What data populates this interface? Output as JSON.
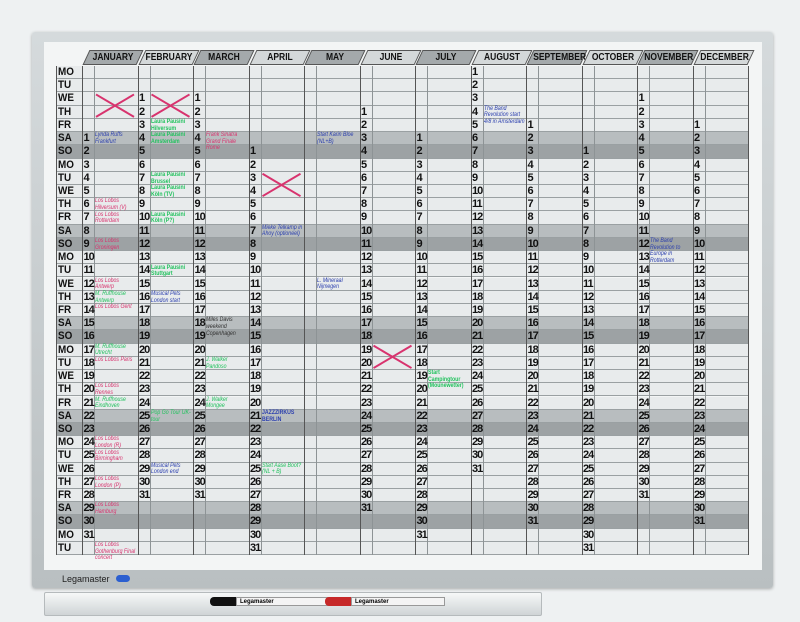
{
  "brand": "Legamaster",
  "marker_label": "Legamaster",
  "weekdays": [
    "MO",
    "TU",
    "WE",
    "TH",
    "FR",
    "SA",
    "SO",
    "MO",
    "TU",
    "WE",
    "TH",
    "FR",
    "SA",
    "SO",
    "MO",
    "TU",
    "WE",
    "TH",
    "FR",
    "SA",
    "SO",
    "MO",
    "TU",
    "WE",
    "TH",
    "FR",
    "SA",
    "SO",
    "MO",
    "TU",
    "WE",
    "TH",
    "FR",
    "SA",
    "SO",
    "MO",
    "TU"
  ],
  "months": [
    {
      "name": "JANUARY",
      "first_weekday": "SA",
      "days": 31
    },
    {
      "name": "FEBRUARY",
      "first_weekday": "WE",
      "days": 31
    },
    {
      "name": "MARCH",
      "first_weekday": "WE",
      "days": 31
    },
    {
      "name": "APRIL",
      "first_weekday": "SO",
      "days": 31
    },
    {
      "name": "MAY",
      "first_weekday": "",
      "days": 0
    },
    {
      "name": "JUNE",
      "first_weekday": "TH",
      "days": 31
    },
    {
      "name": "JULY",
      "first_weekday": "SA",
      "days": 31
    },
    {
      "name": "AUGUST",
      "first_weekday": "MO",
      "days": 31
    },
    {
      "name": "SEPTEMBER",
      "first_weekday": "FR",
      "days": 31
    },
    {
      "name": "OCTOBER",
      "first_weekday": "SO",
      "days": 31
    },
    {
      "name": "NOVEMBER",
      "first_weekday": "WE",
      "days": 31
    },
    {
      "name": "DECEMBER",
      "first_weekday": "FR",
      "days": 31
    }
  ],
  "colors": {
    "pink": "#d8336e",
    "green": "#22c25e",
    "blue": "#2b3fae",
    "dark": "#333333",
    "saturday_band": "#b8bdbf",
    "sunday_band": "#9da2a4"
  },
  "notes": [
    {
      "text": "Lynda Ruffs Frankfurt",
      "color": "blue"
    },
    {
      "text": "Los Lobos Hilversum (V)",
      "color": "pink"
    },
    {
      "text": "Los Lobos Rotterdam",
      "color": "pink"
    },
    {
      "text": "Los Lobos Groningen",
      "color": "pink"
    },
    {
      "text": "Los Lobos Antwerp",
      "color": "pink"
    },
    {
      "text": "M. Ruffhouse Antwerp",
      "color": "green"
    },
    {
      "text": "Los Lobos Gent",
      "color": "pink"
    },
    {
      "text": "M. Ruffhouse Utrecht",
      "color": "green"
    },
    {
      "text": "Los Lobos Paris",
      "color": "pink"
    },
    {
      "text": "Los Lobos Rennes",
      "color": "pink"
    },
    {
      "text": "M. Ruffhouse Eindhoven",
      "color": "green"
    },
    {
      "text": "Los Lobos London (R)",
      "color": "pink"
    },
    {
      "text": "Los Lobos Birmingham",
      "color": "pink"
    },
    {
      "text": "Los Lobos London (P)",
      "color": "pink"
    },
    {
      "text": "Los Lobos Hamburg",
      "color": "pink"
    },
    {
      "text": "Los Lobos Gothenburg Final concert",
      "color": "pink"
    },
    {
      "text": "Laura Pausini Hilversum",
      "color": "green",
      "printed": true
    },
    {
      "text": "Laura Pausini Amsterdam",
      "color": "green",
      "printed": true
    },
    {
      "text": "Laura Pausini Brussel",
      "color": "green",
      "printed": true
    },
    {
      "text": "Laura Pausini Köln (TV)",
      "color": "green",
      "printed": true
    },
    {
      "text": "Laura Pausini Köln (P?)",
      "color": "green",
      "printed": true
    },
    {
      "text": "Laura Pausini Stuttgart",
      "color": "green",
      "printed": true
    },
    {
      "text": "Musical Pets London start",
      "color": "blue"
    },
    {
      "text": "Pop Go Tour UK-tour",
      "color": "green"
    },
    {
      "text": "Musical Pets London end",
      "color": "blue"
    },
    {
      "text": "Frank Sinatra Grand Finale Rome",
      "color": "pink"
    },
    {
      "text": "Miles Davis weekend Copenhagen",
      "color": "dark"
    },
    {
      "text": "J. Walker Pandoso",
      "color": "green"
    },
    {
      "text": "J. Walker Mongee",
      "color": "green"
    },
    {
      "text": "Mieke Telkamp in Ahoy (optioneel)",
      "color": "blue"
    },
    {
      "text": "JAZZZIRKUS BERLIN",
      "color": "blue",
      "printed": true
    },
    {
      "text": "Start Aase Boot? (NL + B)",
      "color": "green"
    },
    {
      "text": "Start Karin Bloe (NL+B)",
      "color": "blue"
    },
    {
      "text": "L. Mineraal Nijmegen",
      "color": "blue"
    },
    {
      "text": "Start Campingtour (Mounewetter)",
      "color": "green",
      "printed": true
    },
    {
      "text": "The Band Revolution start 4/8 in Amsterdam",
      "color": "blue"
    },
    {
      "text": "The Band Revolution to Europe in Rotterdam",
      "color": "blue"
    }
  ]
}
